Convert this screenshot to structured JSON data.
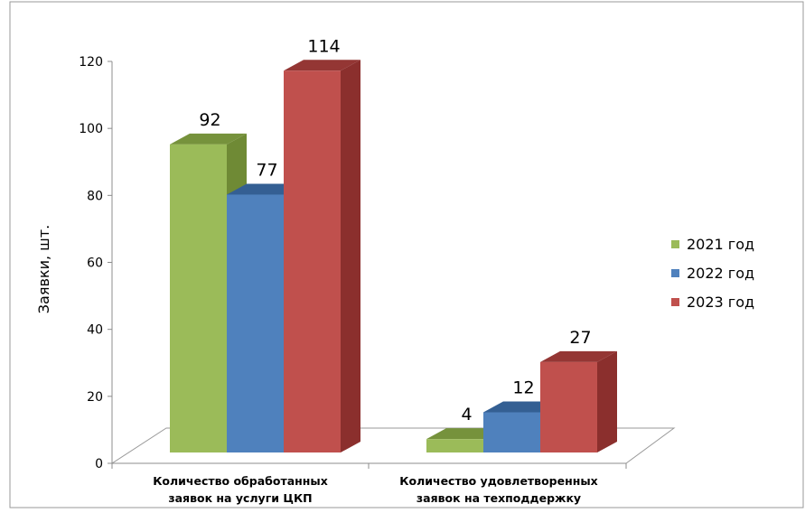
{
  "chart_data": {
    "type": "bar",
    "ylabel": "Заявки, шт.",
    "ylim": [
      0,
      120
    ],
    "yticks": [
      0,
      20,
      40,
      60,
      80,
      100,
      120
    ],
    "categories": [
      [
        "Количество обработанных",
        "заявок на услуги ЦКП"
      ],
      [
        "Количество удовлетворенных",
        "заявок на техподдержку"
      ]
    ],
    "series": [
      {
        "name": "2021 год",
        "values": [
          92,
          4
        ],
        "color": "#9bbb59",
        "top_color": "#76923c",
        "side_color": "#6f8a35"
      },
      {
        "name": "2022 год",
        "values": [
          77,
          12
        ],
        "color": "#4f81bd",
        "top_color": "#345f93",
        "side_color": "#2f5687"
      },
      {
        "name": "2023 год",
        "values": [
          114,
          27
        ],
        "color": "#c0504d",
        "top_color": "#943634",
        "side_color": "#8b2f2d"
      }
    ],
    "legend_position": "right",
    "grid": false,
    "style": "3d-clustered-bar"
  }
}
